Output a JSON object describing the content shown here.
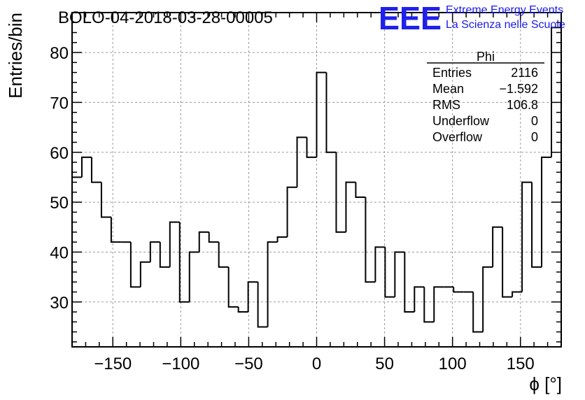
{
  "chart_data": {
    "type": "histogram",
    "title": "BOLO-04-2018-03-28-00005",
    "xlabel": "ϕ [°]",
    "ylabel": "Entries/bin",
    "xlim": [
      -180,
      180
    ],
    "ylim": [
      21,
      88
    ],
    "bin_width": 7.2,
    "x_ticks": [
      -150,
      -100,
      -50,
      0,
      50,
      100,
      150
    ],
    "x_tick_labels": [
      "−150",
      "−100",
      "−50",
      "0",
      "50",
      "100",
      "150"
    ],
    "y_ticks": [
      30,
      40,
      50,
      60,
      70,
      80
    ],
    "y_tick_labels": [
      "30",
      "40",
      "50",
      "60",
      "70",
      "80"
    ],
    "grid": true,
    "values": [
      55,
      59,
      54,
      47,
      42,
      42,
      33,
      38,
      42,
      37,
      46,
      30,
      40,
      44,
      42,
      37,
      29,
      28,
      34,
      25,
      42,
      43,
      53,
      63,
      59,
      76,
      60,
      44,
      54,
      51,
      34,
      41,
      31,
      40,
      28,
      33,
      26,
      33,
      33,
      32,
      32,
      24,
      37,
      45,
      31,
      32,
      54,
      37,
      59,
      85
    ],
    "stats_box": {
      "title": "Phi",
      "rows": [
        {
          "label": "Entries",
          "value": "2116"
        },
        {
          "label": "Mean",
          "value": "−1.592"
        },
        {
          "label": "RMS",
          "value": "106.8"
        },
        {
          "label": "Underflow",
          "value": "0"
        },
        {
          "label": "Overflow",
          "value": "0"
        }
      ]
    }
  },
  "logo": {
    "mark": "EEE",
    "line1": "Extreme Energy Events",
    "line2": "La Scienza nelle Scuole",
    "color": "#2020ee"
  }
}
